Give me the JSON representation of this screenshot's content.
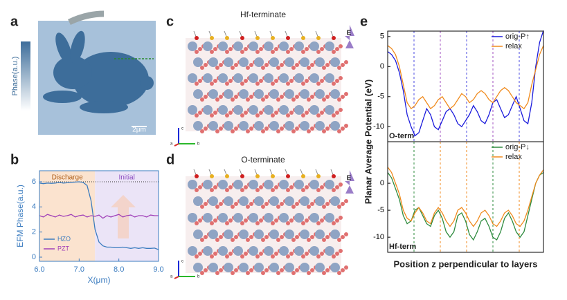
{
  "panels": [
    "a",
    "b",
    "c",
    "d",
    "e"
  ],
  "image": {
    "colorbar_label": "Phase(a.u.)",
    "scale_bar": "2μm"
  },
  "structures": [
    {
      "title": "Hf-terminate",
      "field_label": "E",
      "axes": [
        "c",
        "a",
        "b"
      ]
    },
    {
      "title": "O-terminate",
      "field_label": "E",
      "axes": [
        "c",
        "a",
        "b"
      ]
    }
  ],
  "chart_data": [
    {
      "type": "line",
      "xlabel": "X(μm)",
      "ylabel": "EFM Phase(a.u.)",
      "x": [
        6.0,
        6.1,
        6.2,
        6.3,
        6.4,
        6.5,
        6.6,
        6.7,
        6.8,
        6.9,
        7.0,
        7.1,
        7.2,
        7.3,
        7.4,
        7.5,
        7.6,
        7.7,
        7.8,
        7.9,
        8.0,
        8.1,
        8.2,
        8.3,
        8.4,
        8.5,
        8.6,
        8.7,
        8.8,
        8.9,
        9.0
      ],
      "xlim": [
        6,
        9
      ],
      "xticks": [
        {
          "value": 6,
          "label": "6.0"
        },
        {
          "value": 7,
          "label": "7.0"
        },
        {
          "value": 8,
          "label": "8.0"
        },
        {
          "value": 9,
          "label": "9.0"
        }
      ],
      "ylim": [
        -0.33,
        6.88
      ],
      "yticks": [
        0,
        2,
        4,
        6
      ],
      "legend": "lower left",
      "reference_line": 6,
      "regions": [
        {
          "label": "Discharge",
          "range": [
            6,
            7.4
          ],
          "color": "#fbe3cf"
        },
        {
          "label": "Initial",
          "range": [
            7.4,
            9
          ],
          "color": "#ebe4f7"
        }
      ],
      "series": [
        {
          "name": "HZO",
          "color": "#3a7bbf",
          "values": [
            5.9,
            5.85,
            5.9,
            5.88,
            5.9,
            5.95,
            5.9,
            5.92,
            5.95,
            5.98,
            6.0,
            5.95,
            5.7,
            4.5,
            2.2,
            1.2,
            0.9,
            0.8,
            0.8,
            0.75,
            0.75,
            0.8,
            0.75,
            0.7,
            0.75,
            0.7,
            0.75,
            0.7,
            0.7,
            0.72,
            0.6
          ]
        },
        {
          "name": "PZT",
          "color": "#a040b8",
          "values": [
            3.3,
            3.2,
            3.4,
            3.3,
            3.2,
            3.35,
            3.25,
            3.3,
            3.4,
            3.2,
            3.3,
            3.35,
            3.2,
            3.3,
            3.25,
            3.35,
            3.1,
            3.3,
            3.2,
            3.3,
            3.4,
            3.2,
            3.3,
            3.35,
            3.2,
            3.3,
            3.3,
            3.2,
            3.35,
            3.3,
            3.3
          ]
        }
      ]
    },
    {
      "type": "line",
      "ylabel": "Planar Average Potential (eV)",
      "annotation": "O-term",
      "legend": "upper right",
      "ylim": [
        -12.5,
        5.9
      ],
      "yticks": [
        5,
        0,
        -5,
        -10
      ],
      "series": [
        {
          "name": "orig-P↑",
          "color": "#1a1adc",
          "values": [
            2.5,
            2,
            1,
            -1,
            -4,
            -8,
            -10,
            -11.5,
            -11,
            -9,
            -7,
            -8,
            -10,
            -10.5,
            -9,
            -7.5,
            -7,
            -8,
            -9.5,
            -10,
            -9,
            -8,
            -6.5,
            -7.5,
            -9,
            -9.5,
            -8,
            -6,
            -5.5,
            -7,
            -8.5,
            -8,
            -6.5,
            -5,
            -7,
            -9,
            -9.5,
            -6,
            0,
            4,
            6
          ]
        },
        {
          "name": "relax",
          "color": "#f08a1c",
          "values": [
            3.5,
            3,
            2,
            0,
            -3,
            -6,
            -7,
            -6.5,
            -5.5,
            -5,
            -6,
            -7,
            -6.5,
            -5.5,
            -5,
            -6,
            -7,
            -6.5,
            -5.5,
            -4.5,
            -5,
            -6,
            -5.5,
            -4.5,
            -4,
            -4.5,
            -5.5,
            -6,
            -5,
            -4,
            -3.5,
            -4,
            -5,
            -6,
            -6.5,
            -7,
            -6,
            -3,
            -0.5,
            2,
            3.5
          ]
        }
      ]
    },
    {
      "type": "line",
      "xlabel": "Position z perpendicular to layers",
      "annotation": "Hf-term",
      "legend": "upper right",
      "ylim": [
        -12.8,
        7.7
      ],
      "yticks": [
        0,
        -5,
        -10
      ],
      "series": [
        {
          "name": "orig-P↓",
          "color": "#2e8b3e",
          "values": [
            2,
            1,
            -1,
            -3,
            -6,
            -7.5,
            -7,
            -5,
            -4.5,
            -6,
            -7.5,
            -8,
            -6,
            -5,
            -6.5,
            -9,
            -10,
            -9,
            -6,
            -5.5,
            -7,
            -9.5,
            -10.5,
            -9,
            -7,
            -6.5,
            -8,
            -10,
            -10.5,
            -9,
            -6.5,
            -5.5,
            -7,
            -9,
            -10,
            -9,
            -6,
            -3,
            0,
            1.5,
            2
          ]
        },
        {
          "name": "relax",
          "color": "#f08a1c",
          "values": [
            3,
            2,
            0,
            -2,
            -5,
            -6.5,
            -7,
            -5.5,
            -4.5,
            -5.5,
            -7,
            -7.5,
            -5.5,
            -4.5,
            -5.5,
            -7,
            -8,
            -7,
            -5,
            -4.5,
            -5.5,
            -7,
            -8,
            -7,
            -5.5,
            -5,
            -6,
            -7.5,
            -8,
            -7,
            -5.5,
            -5,
            -6,
            -7.5,
            -8,
            -7,
            -5,
            -2.5,
            0,
            1.5,
            2.5
          ]
        }
      ]
    }
  ]
}
